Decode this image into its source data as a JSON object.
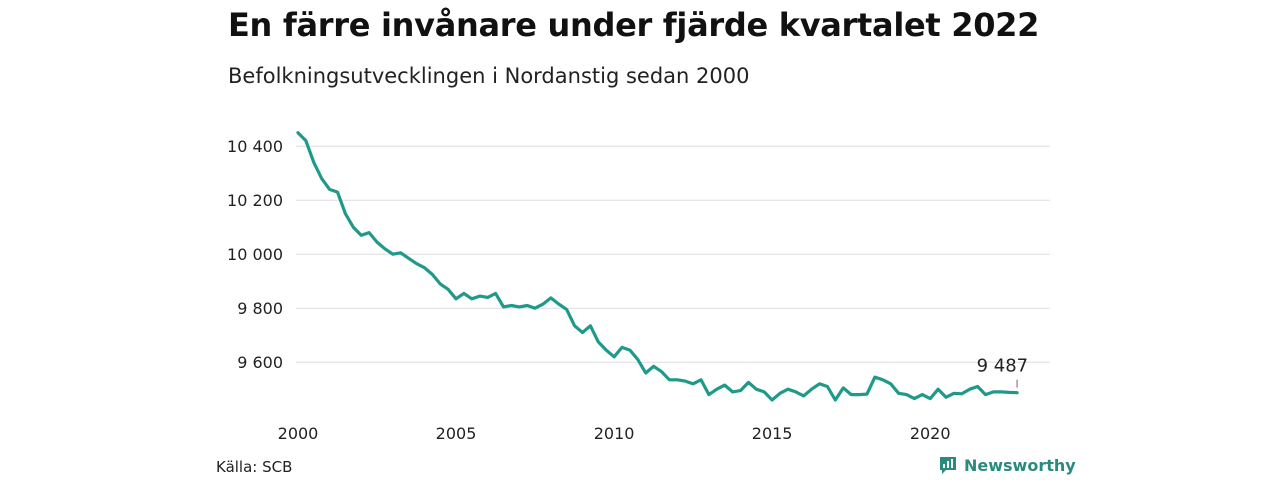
{
  "header": {
    "title": "En färre invånare under fjärde kvartalet 2022",
    "subtitle": "Befolkningsutvecklingen i Nordanstig sedan 2000"
  },
  "footer": {
    "source": "Källa: SCB",
    "brand": "Newsworthy",
    "brand_icon": "bar-chart-icon"
  },
  "colors": {
    "line": "#1f9a8a",
    "grid": "#dddddd",
    "brand": "#2a8a7e"
  },
  "chart_data": {
    "type": "line",
    "title": "En färre invånare under fjärde kvartalet 2022",
    "subtitle": "Befolkningsutvecklingen i Nordanstig sedan 2000",
    "xlabel": "",
    "ylabel": "",
    "xlim": [
      2000,
      2023
    ],
    "ylim": [
      9460,
      10460
    ],
    "x_ticks": [
      {
        "value": 2000,
        "label": "2000"
      },
      {
        "value": 2005,
        "label": "2005"
      },
      {
        "value": 2010,
        "label": "2010"
      },
      {
        "value": 2015,
        "label": "2015"
      },
      {
        "value": 2020,
        "label": "2020"
      }
    ],
    "y_ticks": [
      {
        "value": 9600,
        "label": "9 600"
      },
      {
        "value": 9800,
        "label": "9 800"
      },
      {
        "value": 10000,
        "label": "10 000"
      },
      {
        "value": 10200,
        "label": "10 200"
      },
      {
        "value": 10400,
        "label": "10 400"
      }
    ],
    "grid": true,
    "last_label": "9 487",
    "series": [
      {
        "name": "",
        "x": [
          2000.0,
          2000.25,
          2000.5,
          2000.75,
          2001.0,
          2001.25,
          2001.5,
          2001.75,
          2002.0,
          2002.25,
          2002.5,
          2002.75,
          2003.0,
          2003.25,
          2003.5,
          2003.75,
          2004.0,
          2004.25,
          2004.5,
          2004.75,
          2005.0,
          2005.25,
          2005.5,
          2005.75,
          2006.0,
          2006.25,
          2006.5,
          2006.75,
          2007.0,
          2007.25,
          2007.5,
          2007.75,
          2008.0,
          2008.25,
          2008.5,
          2008.75,
          2009.0,
          2009.25,
          2009.5,
          2009.75,
          2010.0,
          2010.25,
          2010.5,
          2010.75,
          2011.0,
          2011.25,
          2011.5,
          2011.75,
          2012.0,
          2012.25,
          2012.5,
          2012.75,
          2013.0,
          2013.25,
          2013.5,
          2013.75,
          2014.0,
          2014.25,
          2014.5,
          2014.75,
          2015.0,
          2015.25,
          2015.5,
          2015.75,
          2016.0,
          2016.25,
          2016.5,
          2016.75,
          2017.0,
          2017.25,
          2017.5,
          2017.75,
          2018.0,
          2018.25,
          2018.5,
          2018.75,
          2019.0,
          2019.25,
          2019.5,
          2019.75,
          2020.0,
          2020.25,
          2020.5,
          2020.75,
          2021.0,
          2021.25,
          2021.5,
          2021.75,
          2022.0,
          2022.25,
          2022.5,
          2022.75
        ],
        "values": [
          10450,
          10420,
          10340,
          10280,
          10240,
          10230,
          10150,
          10100,
          10070,
          10080,
          10045,
          10020,
          10000,
          10005,
          9985,
          9965,
          9950,
          9925,
          9890,
          9870,
          9835,
          9855,
          9835,
          9845,
          9840,
          9855,
          9805,
          9810,
          9805,
          9810,
          9800,
          9815,
          9838,
          9815,
          9795,
          9735,
          9710,
          9735,
          9675,
          9645,
          9620,
          9655,
          9645,
          9610,
          9560,
          9585,
          9565,
          9535,
          9535,
          9530,
          9520,
          9535,
          9480,
          9500,
          9515,
          9490,
          9495,
          9525,
          9500,
          9490,
          9460,
          9485,
          9500,
          9490,
          9475,
          9500,
          9520,
          9510,
          9460,
          9505,
          9480,
          9480,
          9482,
          9545,
          9535,
          9520,
          9485,
          9480,
          9465,
          9480,
          9465,
          9500,
          9470,
          9485,
          9483,
          9500,
          9510,
          9480,
          9490,
          9490,
          9488,
          9487
        ]
      }
    ]
  }
}
